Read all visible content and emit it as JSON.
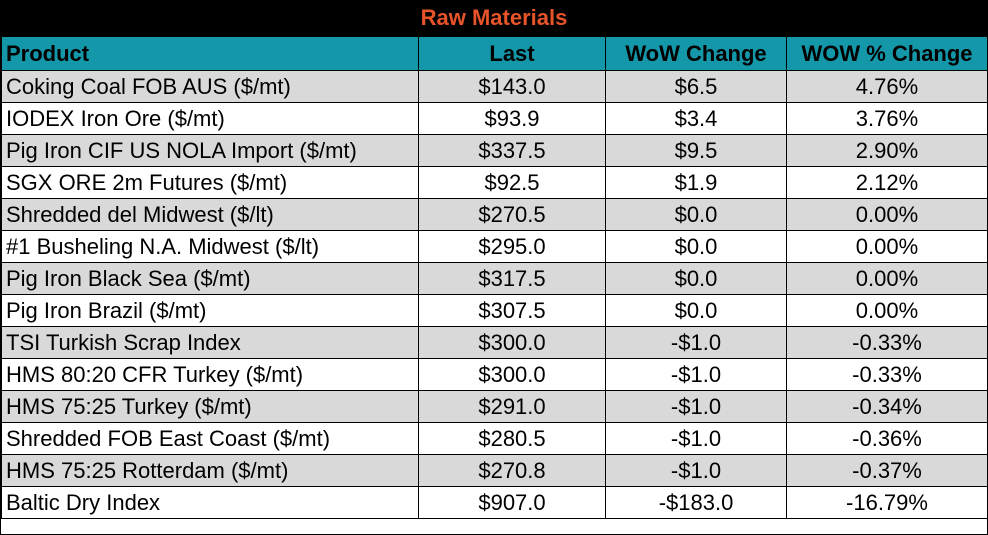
{
  "title": "Raw Materials",
  "headers": [
    "Product",
    "Last",
    "WoW Change",
    "WOW % Change"
  ],
  "rows": [
    [
      "Coking Coal FOB AUS ($/mt)",
      "$143.0",
      "$6.5",
      "4.76%"
    ],
    [
      "IODEX  Iron Ore ($/mt)",
      "$93.9",
      "$3.4",
      "3.76%"
    ],
    [
      "Pig Iron CIF US NOLA Import ($/mt)",
      "$337.5",
      "$9.5",
      "2.90%"
    ],
    [
      "SGX ORE 2m Futures ($/mt)",
      "$92.5",
      "$1.9",
      "2.12%"
    ],
    [
      "Shredded del  Midwest ($/lt)",
      "$270.5",
      "$0.0",
      "0.00%"
    ],
    [
      "#1 Busheling N.A. Midwest ($/lt)",
      "$295.0",
      "$0.0",
      "0.00%"
    ],
    [
      "Pig Iron Black Sea ($/mt)",
      "$317.5",
      "$0.0",
      "0.00%"
    ],
    [
      "Pig Iron Brazil ($/mt)",
      "$307.5",
      "$0.0",
      "0.00%"
    ],
    [
      "TSI Turkish Scrap Index",
      "$300.0",
      "-$1.0",
      "-0.33%"
    ],
    [
      "HMS 80:20 CFR Turkey ($/mt)",
      "$300.0",
      "-$1.0",
      "-0.33%"
    ],
    [
      "HMS 75:25 Turkey ($/mt)",
      "$291.0",
      "-$1.0",
      "-0.34%"
    ],
    [
      "Shredded FOB East Coast ($/mt)",
      "$280.5",
      "-$1.0",
      "-0.36%"
    ],
    [
      "HMS 75:25 Rotterdam ($/mt)",
      "$270.8",
      "-$1.0",
      "-0.37%"
    ],
    [
      "Baltic Dry Index",
      "$907.0",
      "-$183.0",
      "-16.79%"
    ]
  ],
  "colors": {
    "title_bg": "#000000",
    "title_text": "#e8542a",
    "header_bg": "#1497a9",
    "row_shade": "#d9d9d9"
  }
}
